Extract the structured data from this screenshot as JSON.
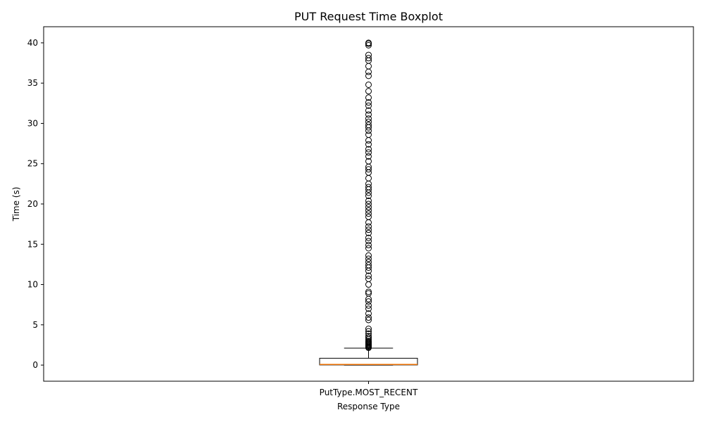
{
  "chart_data": {
    "type": "box",
    "title": "PUT Request Time Boxplot",
    "xlabel": "Response Type",
    "ylabel": "Time (s)",
    "categories": [
      "PutType.MOST_RECENT"
    ],
    "ylim": [
      -2,
      42
    ],
    "yticks": [
      0,
      5,
      10,
      15,
      20,
      25,
      30,
      35,
      40
    ],
    "grid": false,
    "boxes": [
      {
        "category": "PutType.MOST_RECENT",
        "whisker_low": 0.0,
        "q1": 0.02,
        "median": 0.08,
        "q3": 0.85,
        "whisker_high": 2.1,
        "outliers": [
          2.15,
          2.2,
          2.3,
          2.4,
          2.5,
          2.6,
          2.7,
          2.8,
          2.9,
          3.0,
          3.2,
          3.4,
          3.6,
          3.9,
          4.2,
          4.5,
          5.6,
          5.9,
          6.4,
          7.0,
          7.4,
          7.9,
          8.2,
          8.9,
          9.1,
          10.0,
          10.7,
          11.1,
          11.7,
          12.1,
          12.4,
          12.8,
          13.2,
          13.6,
          14.5,
          14.9,
          15.4,
          15.8,
          16.4,
          16.8,
          17.2,
          17.7,
          18.4,
          18.8,
          19.2,
          19.6,
          20.0,
          20.4,
          21.0,
          21.4,
          21.8,
          22.1,
          22.5,
          23.2,
          23.9,
          24.3,
          24.6,
          25.3,
          25.9,
          26.4,
          26.8,
          27.4,
          27.9,
          28.6,
          29.1,
          29.5,
          29.8,
          30.2,
          30.6,
          31.1,
          31.6,
          32.2,
          32.6,
          33.2,
          34.0,
          34.8,
          35.9,
          36.4,
          37.1,
          37.8,
          38.1,
          38.5,
          39.7,
          39.9,
          40.0
        ]
      }
    ]
  },
  "colors": {
    "box": "#000000",
    "median": "#ff7f0e",
    "outlier": "#000000"
  }
}
